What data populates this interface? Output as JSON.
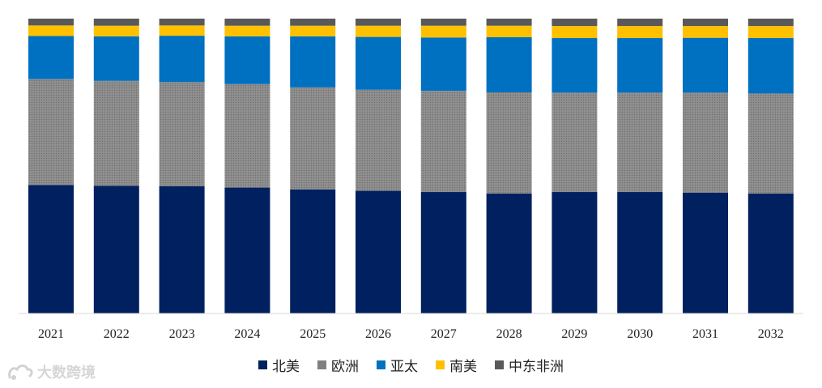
{
  "chart_data": {
    "type": "bar",
    "stacked": true,
    "normalized_percent": true,
    "categories": [
      "2021",
      "2022",
      "2023",
      "2024",
      "2025",
      "2026",
      "2027",
      "2028",
      "2029",
      "2030",
      "2031",
      "2032"
    ],
    "series": [
      {
        "name": "北美",
        "color": "#002060",
        "values": [
          43.6,
          43.3,
          43.2,
          42.7,
          42.1,
          41.6,
          41.2,
          40.7,
          41.2,
          41.2,
          41.0,
          40.7
        ]
      },
      {
        "name": "欧洲",
        "color": "#808080",
        "values": [
          35.9,
          35.6,
          35.3,
          35.1,
          34.6,
          34.3,
          34.3,
          34.3,
          33.7,
          33.7,
          33.9,
          33.9
        ]
      },
      {
        "name": "亚太",
        "color": "#0070C0",
        "values": [
          14.6,
          15.1,
          15.7,
          16.2,
          17.3,
          17.9,
          18.1,
          18.7,
          18.5,
          18.5,
          18.6,
          18.8
        ]
      },
      {
        "name": "南美",
        "color": "#FFC000",
        "values": [
          3.6,
          3.6,
          3.5,
          3.6,
          3.6,
          3.8,
          4.0,
          3.9,
          4.1,
          4.1,
          4.0,
          4.1
        ]
      },
      {
        "name": "中东非洲",
        "color": "#595959",
        "values": [
          2.3,
          2.4,
          2.3,
          2.4,
          2.4,
          2.4,
          2.4,
          2.4,
          2.5,
          2.5,
          2.5,
          2.5
        ]
      }
    ],
    "ylim": [
      0,
      100
    ],
    "grid": false,
    "legend_position": "bottom"
  },
  "watermark": {
    "text": "大数跨境"
  }
}
